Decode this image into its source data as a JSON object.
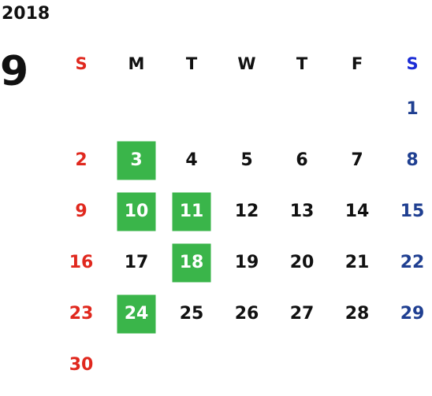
{
  "calendar": {
    "year": "2018",
    "month": "9",
    "weekday_headers": [
      "S",
      "M",
      "T",
      "W",
      "T",
      "F",
      "S"
    ],
    "first_weekday_index": 6,
    "days_in_month": 30,
    "highlighted_days": [
      3,
      10,
      11,
      18,
      24
    ],
    "weeks": [
      [
        "",
        "",
        "",
        "",
        "",
        "",
        "1"
      ],
      [
        "2",
        "3",
        "4",
        "5",
        "6",
        "7",
        "8"
      ],
      [
        "9",
        "10",
        "11",
        "12",
        "13",
        "14",
        "15"
      ],
      [
        "16",
        "17",
        "18",
        "19",
        "20",
        "21",
        "22"
      ],
      [
        "23",
        "24",
        "25",
        "26",
        "27",
        "28",
        "29"
      ],
      [
        "30",
        "",
        "",
        "",
        "",
        "",
        ""
      ]
    ]
  },
  "colors": {
    "sunday": "#e0281e",
    "saturday_header": "#1a2bd6",
    "saturday_day": "#1f3f91",
    "weekday": "#111111",
    "highlight_bg": "#3ab54a",
    "highlight_text": "#ffffff"
  }
}
